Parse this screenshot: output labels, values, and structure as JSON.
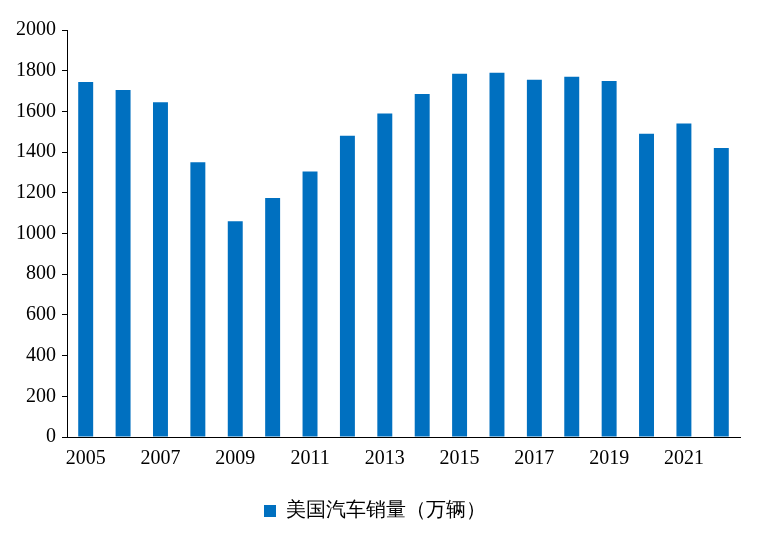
{
  "chart_data": {
    "type": "bar",
    "categories": [
      "2005",
      null,
      "2007",
      null,
      "2009",
      null,
      "2011",
      null,
      "2013",
      null,
      "2015",
      null,
      "2017",
      null,
      "2019",
      null,
      "2021",
      null
    ],
    "series": [
      {
        "name": "美国汽车销量（万辆）",
        "color": "#0070c0",
        "values": [
          1745,
          1705,
          1645,
          1350,
          1060,
          1175,
          1305,
          1480,
          1590,
          1685,
          1785,
          1790,
          1755,
          1770,
          1750,
          1490,
          1540,
          1420
        ]
      }
    ],
    "ylim": [
      0,
      2000
    ],
    "yticks": [
      0,
      200,
      400,
      600,
      800,
      1000,
      1200,
      1400,
      1600,
      1800,
      2000
    ],
    "grid": false,
    "legend": "bottom"
  }
}
